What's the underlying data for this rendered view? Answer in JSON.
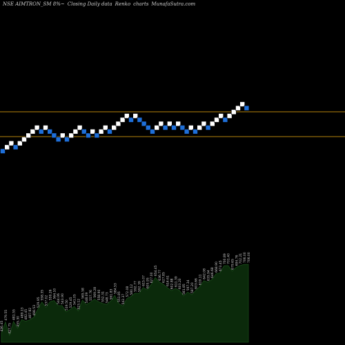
{
  "header": {
    "symbol": "NSE AIMTRON_SM 8%~",
    "subtitle": "Closing Daily data",
    "chart_kind": "Renko",
    "word": "charts",
    "site": "MunafaSutra.com"
  },
  "colors": {
    "background": "#000000",
    "up_brick": "#ffffff",
    "down_brick": "#1e6fd9",
    "reference_line": "#b8860b",
    "area_fill": "#0b2a0b",
    "area_stroke": "#1a4d1a",
    "label": "#cfcfcf"
  },
  "chart_data": [
    {
      "type": "renko",
      "title": "NSE AIMTRON_SM 8%~ Closing Daily data Renko charts",
      "reference_lines": [
        {
          "name": "upper",
          "value": 757.06
        },
        {
          "name": "lower",
          "value": 636.88
        }
      ],
      "bricks": [
        {
          "level": 568.0,
          "dir": "down"
        },
        {
          "level": 577.0,
          "dir": "up"
        },
        {
          "level": 586.0,
          "dir": "up"
        },
        {
          "level": 577.0,
          "dir": "down"
        },
        {
          "level": 586.0,
          "dir": "up"
        },
        {
          "level": 595.0,
          "dir": "up"
        },
        {
          "level": 604.0,
          "dir": "up"
        },
        {
          "level": 613.0,
          "dir": "up"
        },
        {
          "level": 622.0,
          "dir": "up"
        },
        {
          "level": 613.0,
          "dir": "down"
        },
        {
          "level": 622.0,
          "dir": "up"
        },
        {
          "level": 613.0,
          "dir": "down"
        },
        {
          "level": 604.0,
          "dir": "down"
        },
        {
          "level": 595.0,
          "dir": "down"
        },
        {
          "level": 604.0,
          "dir": "up"
        },
        {
          "level": 595.0,
          "dir": "down"
        },
        {
          "level": 604.0,
          "dir": "up"
        },
        {
          "level": 613.0,
          "dir": "up"
        },
        {
          "level": 622.0,
          "dir": "up"
        },
        {
          "level": 613.0,
          "dir": "down"
        },
        {
          "level": 604.0,
          "dir": "down"
        },
        {
          "level": 613.0,
          "dir": "up"
        },
        {
          "level": 604.0,
          "dir": "down"
        },
        {
          "level": 613.0,
          "dir": "up"
        },
        {
          "level": 622.0,
          "dir": "up"
        },
        {
          "level": 613.0,
          "dir": "down"
        },
        {
          "level": 622.0,
          "dir": "up"
        },
        {
          "level": 631.0,
          "dir": "up"
        },
        {
          "level": 640.0,
          "dir": "up"
        },
        {
          "level": 649.0,
          "dir": "up"
        },
        {
          "level": 640.0,
          "dir": "down"
        },
        {
          "level": 649.0,
          "dir": "up"
        },
        {
          "level": 640.0,
          "dir": "down"
        },
        {
          "level": 631.0,
          "dir": "down"
        },
        {
          "level": 622.0,
          "dir": "down"
        },
        {
          "level": 613.0,
          "dir": "down"
        },
        {
          "level": 622.0,
          "dir": "up"
        },
        {
          "level": 631.0,
          "dir": "up"
        },
        {
          "level": 622.0,
          "dir": "down"
        },
        {
          "level": 631.0,
          "dir": "up"
        },
        {
          "level": 622.0,
          "dir": "down"
        },
        {
          "level": 631.0,
          "dir": "up"
        },
        {
          "level": 622.0,
          "dir": "down"
        },
        {
          "level": 613.0,
          "dir": "down"
        },
        {
          "level": 622.0,
          "dir": "up"
        },
        {
          "level": 613.0,
          "dir": "down"
        },
        {
          "level": 622.0,
          "dir": "up"
        },
        {
          "level": 631.0,
          "dir": "up"
        },
        {
          "level": 622.0,
          "dir": "down"
        },
        {
          "level": 631.0,
          "dir": "up"
        },
        {
          "level": 640.0,
          "dir": "up"
        },
        {
          "level": 649.0,
          "dir": "up"
        },
        {
          "level": 640.0,
          "dir": "down"
        },
        {
          "level": 649.0,
          "dir": "up"
        },
        {
          "level": 658.0,
          "dir": "up"
        },
        {
          "level": 667.0,
          "dir": "up"
        },
        {
          "level": 676.0,
          "dir": "up"
        },
        {
          "level": 667.0,
          "dir": "down"
        }
      ],
      "x_axis": {
        "hidden": true
      },
      "y_axis": {
        "hidden": true
      },
      "grid": false
    },
    {
      "type": "area",
      "labels": [
        "436.45",
        "479.55",
        "427.75",
        "481.55",
        "455.30",
        "489.13",
        "482.45",
        "487.82",
        "498.53",
        "529.95",
        "558.35",
        "537.02",
        "559.26",
        "564.10",
        "544.06",
        "543.90",
        "519.50",
        "529.45",
        "541.05",
        "523.12",
        "565.58",
        "548.09",
        "557.76",
        "569.28",
        "558.90",
        "552.31",
        "548.73",
        "561.83",
        "584.53",
        "551.85",
        "542.37",
        "572.08",
        "580.12",
        "592.77",
        "592.39",
        "615.07",
        "605.95",
        "627.00",
        "654.45",
        "636.77",
        "627.85",
        "614.61",
        "602.88",
        "611.39",
        "603.20",
        "581.85",
        "597.34",
        "587.20",
        "603.66",
        "619.11",
        "642.08",
        "635.94",
        "646.68",
        "668.90",
        "673.45",
        "700.89",
        "701.40",
        "679.65",
        "694.76",
        "702.21",
        "706.00",
        "706.00"
      ],
      "values": [
        436.45,
        479.55,
        427.75,
        481.55,
        455.3,
        489.13,
        482.45,
        487.82,
        498.53,
        529.95,
        558.35,
        537.02,
        559.26,
        564.1,
        544.06,
        543.9,
        519.5,
        529.45,
        541.05,
        523.12,
        565.58,
        548.09,
        557.76,
        569.28,
        558.9,
        552.31,
        548.73,
        561.83,
        584.53,
        551.85,
        542.37,
        572.08,
        580.12,
        592.77,
        592.39,
        615.07,
        605.95,
        627.0,
        654.45,
        636.77,
        627.85,
        614.61,
        602.88,
        611.39,
        603.2,
        581.85,
        597.34,
        587.2,
        603.66,
        619.11,
        642.08,
        635.94,
        646.68,
        668.9,
        673.45,
        700.89,
        701.4,
        679.65,
        694.76,
        702.21,
        706.0,
        706.0
      ]
    }
  ]
}
